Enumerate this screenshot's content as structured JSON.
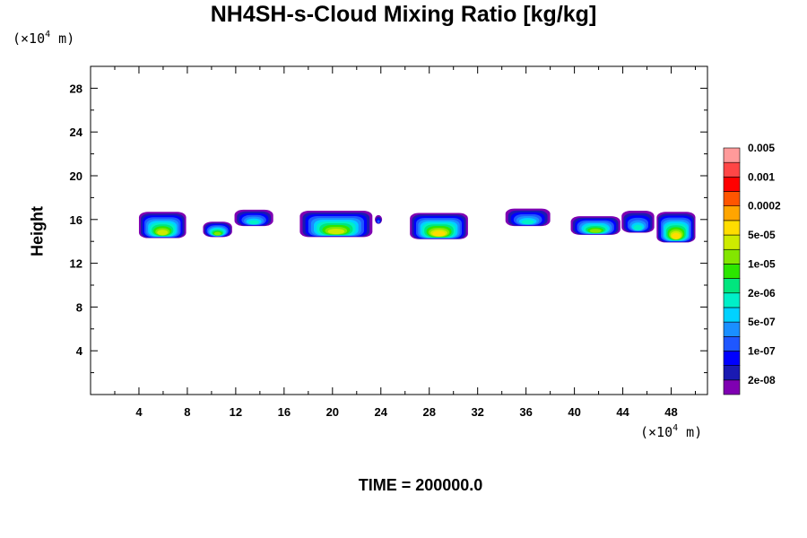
{
  "chart_data": {
    "type": "heatmap",
    "title": "NH4SH-s-Cloud Mixing Ratio [kg/kg]",
    "ylabel": "Height",
    "xlabel": "",
    "x_unit": {
      "base": "(×10",
      "exp": "4",
      "tail": " m)"
    },
    "y_unit": {
      "base": "(×10",
      "exp": "4",
      "tail": " m)"
    },
    "xlim": [
      0,
      51
    ],
    "ylim": [
      0,
      30
    ],
    "x_ticks": [
      4,
      8,
      12,
      16,
      20,
      24,
      28,
      32,
      36,
      40,
      44,
      48
    ],
    "y_ticks": [
      4,
      8,
      12,
      16,
      20,
      24,
      28
    ],
    "x_tick_labels": [
      "4",
      "8",
      "12",
      "16",
      "20",
      "24",
      "28",
      "32",
      "36",
      "40",
      "44",
      "48"
    ],
    "y_tick_labels": [
      "4",
      "8",
      "12",
      "16",
      "20",
      "24",
      "28"
    ],
    "colorbar": {
      "colors": [
        "#7f00b2",
        "#1a1ab2",
        "#0000ff",
        "#1f57ff",
        "#1a8fff",
        "#00d2ff",
        "#00f0c8",
        "#00e67e",
        "#2ce600",
        "#83e600",
        "#cdeb00",
        "#ffdd00",
        "#ffa500",
        "#ff5500",
        "#ff0000",
        "#ff4646",
        "#ff9a9a"
      ],
      "labels": [
        "2e-08",
        "1e-07",
        "5e-07",
        "2e-06",
        "1e-05",
        "5e-05",
        "0.0002",
        "0.001",
        "0.005"
      ]
    },
    "clouds": [
      {
        "x0": 4.0,
        "x1": 7.9,
        "base": 14.3,
        "top": 16.7,
        "peak_level": 10
      },
      {
        "x0": 9.3,
        "x1": 11.7,
        "base": 14.4,
        "top": 15.8,
        "peak_level": 9
      },
      {
        "x0": 11.9,
        "x1": 15.1,
        "base": 15.4,
        "top": 16.9,
        "peak_level": 6
      },
      {
        "x0": 17.3,
        "x1": 23.3,
        "base": 14.4,
        "top": 16.8,
        "peak_level": 10
      },
      {
        "x0": 23.5,
        "x1": 24.1,
        "base": 15.6,
        "top": 16.4,
        "peak_level": 3
      },
      {
        "x0": 26.4,
        "x1": 31.2,
        "base": 14.2,
        "top": 16.6,
        "peak_level": 11
      },
      {
        "x0": 34.3,
        "x1": 38.0,
        "base": 15.4,
        "top": 17.0,
        "peak_level": 6
      },
      {
        "x0": 39.7,
        "x1": 43.8,
        "base": 14.6,
        "top": 16.3,
        "peak_level": 9
      },
      {
        "x0": 43.9,
        "x1": 46.6,
        "base": 14.8,
        "top": 16.8,
        "peak_level": 6
      },
      {
        "x0": 46.8,
        "x1": 50.0,
        "base": 13.9,
        "top": 16.7,
        "peak_level": 11
      }
    ],
    "time_label": "TIME = 200000.0"
  }
}
